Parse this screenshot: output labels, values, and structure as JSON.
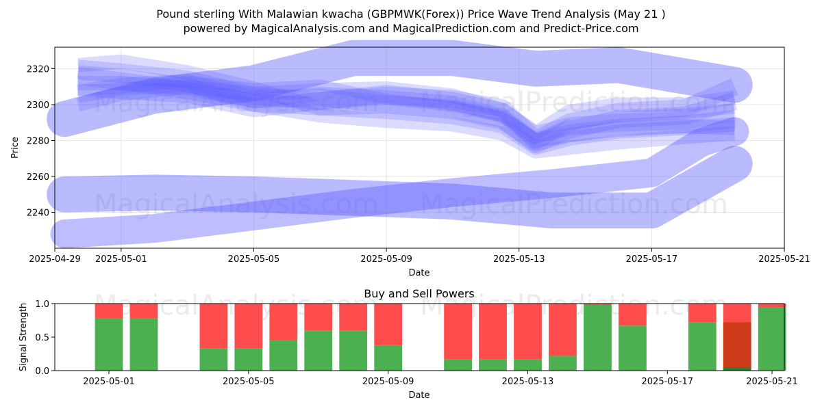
{
  "titles": {
    "line1": "Pound sterling With Malawian kwacha (GBPMWK(Forex)) Price Wave Trend Analysis (May 21 )",
    "line2": "powered by MagicalAnalysis.com and MagicalPrediction.com and Predict-Price.com"
  },
  "watermarks": {
    "left": "MagicalAnalysis.com",
    "right": "MagicalPrediction.com"
  },
  "chart_data": [
    {
      "type": "area",
      "title": "",
      "xlabel": "Date",
      "ylabel": "Price",
      "x_start": "2025-04-29",
      "x_end": "2025-05-21",
      "xlim": [
        0,
        22
      ],
      "ylim": [
        2220,
        2332
      ],
      "x_ticks": [
        {
          "day": 0,
          "label": "2025-04-29"
        },
        {
          "day": 2,
          "label": "2025-05-01"
        },
        {
          "day": 6,
          "label": "2025-05-05"
        },
        {
          "day": 10,
          "label": "2025-05-09"
        },
        {
          "day": 14,
          "label": "2025-05-13"
        },
        {
          "day": 18,
          "label": "2025-05-17"
        },
        {
          "day": 22,
          "label": "2025-05-21"
        }
      ],
      "y_ticks": [
        2240,
        2260,
        2280,
        2300,
        2320
      ],
      "grid": true,
      "series": [
        {
          "name": "band-upper-wide",
          "width": 20,
          "opacity": 0.42,
          "x": [
            0.3,
            3,
            6,
            9,
            12,
            14.5,
            17,
            20.5
          ],
          "y": [
            2292,
            2305,
            2312,
            2326,
            2326,
            2320,
            2322,
            2311
          ]
        },
        {
          "name": "band-lower-wide",
          "width": 20,
          "opacity": 0.42,
          "x": [
            0.3,
            3,
            6,
            9,
            12,
            15,
            18,
            20.5
          ],
          "y": [
            2250,
            2251,
            2250,
            2248,
            2246,
            2241,
            2241,
            2267
          ]
        },
        {
          "name": "band-rising",
          "width": 16,
          "opacity": 0.4,
          "x": [
            0.3,
            3,
            6,
            9,
            12,
            15,
            18,
            19.5,
            20.5
          ],
          "y": [
            2228,
            2231,
            2238,
            2245,
            2251,
            2256,
            2262,
            2279,
            2285
          ]
        },
        {
          "name": "wave-1",
          "width": 10,
          "opacity": 0.22,
          "x": [
            0.7,
            2,
            4,
            6,
            8,
            10,
            12,
            13.5,
            14.5,
            15.5,
            17,
            19,
            20.5
          ],
          "y": [
            2320,
            2318,
            2314,
            2305,
            2302,
            2305,
            2303,
            2298,
            2280,
            2290,
            2296,
            2298,
            2310
          ]
        },
        {
          "name": "wave-2",
          "width": 10,
          "opacity": 0.22,
          "x": [
            0.7,
            2,
            4,
            6,
            8,
            10,
            12,
            13.5,
            14.5,
            15.5,
            17,
            19,
            20.5
          ],
          "y": [
            2316,
            2313,
            2308,
            2301,
            2299,
            2300,
            2298,
            2292,
            2278,
            2286,
            2292,
            2294,
            2302
          ]
        },
        {
          "name": "wave-3",
          "width": 10,
          "opacity": 0.22,
          "x": [
            0.7,
            2,
            4,
            6,
            8,
            10,
            12,
            13.5,
            14.5,
            15.5,
            17,
            19,
            20.5
          ],
          "y": [
            2310,
            2308,
            2306,
            2298,
            2302,
            2306,
            2302,
            2296,
            2283,
            2288,
            2290,
            2291,
            2296
          ]
        },
        {
          "name": "wave-4",
          "width": 10,
          "opacity": 0.22,
          "x": [
            0.7,
            2,
            4,
            6,
            8,
            10,
            12,
            13.5,
            14.5,
            15.5,
            17,
            19,
            20.5
          ],
          "y": [
            2306,
            2310,
            2312,
            2303,
            2304,
            2300,
            2297,
            2291,
            2279,
            2284,
            2287,
            2289,
            2292
          ]
        },
        {
          "name": "wave-5",
          "width": 8,
          "opacity": 0.22,
          "x": [
            0.7,
            2,
            4,
            6,
            8,
            10,
            12,
            13.5,
            14.5,
            15.5,
            17,
            19,
            20.5
          ],
          "y": [
            2322,
            2324,
            2318,
            2309,
            2298,
            2296,
            2293,
            2288,
            2276,
            2281,
            2285,
            2287,
            2289
          ]
        },
        {
          "name": "wave-6",
          "width": 8,
          "opacity": 0.22,
          "x": [
            0.7,
            2,
            4,
            6,
            8,
            10,
            12,
            13.5,
            14.5,
            15.5,
            17,
            19,
            20.5
          ],
          "y": [
            2312,
            2312,
            2309,
            2302,
            2306,
            2304,
            2301,
            2294,
            2280,
            2283,
            2287,
            2288,
            2287
          ]
        },
        {
          "name": "wave-7",
          "width": 8,
          "opacity": 0.22,
          "x": [
            0.7,
            2,
            4,
            6,
            8,
            10,
            12,
            13.5,
            14.5,
            15.5,
            17,
            19,
            20.5
          ],
          "y": [
            2300,
            2306,
            2310,
            2306,
            2308,
            2309,
            2305,
            2297,
            2284,
            2296,
            2300,
            2300,
            2304
          ]
        },
        {
          "name": "wave-8",
          "width": 8,
          "opacity": 0.22,
          "x": [
            0.7,
            2,
            4,
            6,
            8,
            10,
            12,
            13.5,
            14.5,
            15.5,
            17,
            19,
            20.5
          ],
          "y": [
            2318,
            2316,
            2311,
            2300,
            2294,
            2291,
            2289,
            2284,
            2274,
            2276,
            2279,
            2282,
            2284
          ]
        },
        {
          "name": "wave-9",
          "width": 6,
          "opacity": 0.22,
          "x": [
            0.7,
            2,
            4,
            6,
            8,
            10,
            12,
            13.5,
            14.5,
            15.5,
            17,
            19,
            20.5
          ],
          "y": [
            2308,
            2309,
            2313,
            2309,
            2311,
            2303,
            2299,
            2293,
            2281,
            2289,
            2293,
            2295,
            2298
          ]
        }
      ]
    },
    {
      "type": "bar",
      "title": "Buy and Sell Powers",
      "xlabel": "Date",
      "ylabel": "Signal Strength",
      "ylim": [
        0,
        1
      ],
      "xlim": [
        0.45,
        21.35
      ],
      "y_ticks": [
        {
          "v": 0,
          "label": "0.0"
        },
        {
          "v": 0.5,
          "label": "0.5"
        },
        {
          "v": 1,
          "label": "1.0"
        }
      ],
      "x_ticks": [
        {
          "day": 2,
          "label": "2025-05-01"
        },
        {
          "day": 6,
          "label": "2025-05-05"
        },
        {
          "day": 10,
          "label": "2025-05-09"
        },
        {
          "day": 14,
          "label": "2025-05-13"
        },
        {
          "day": 18,
          "label": "2025-05-17"
        },
        {
          "day": 22,
          "label": "2025-05-21"
        }
      ],
      "colors": {
        "buy": "#4caf50",
        "sell": "#ff4d4d",
        "buy_dark": "#2e7d32",
        "sell_dark": "#cc3a1a"
      },
      "series": [
        {
          "name": "buy",
          "x": [
            2,
            3,
            5,
            6,
            7,
            8,
            9,
            10,
            12,
            13,
            14,
            15,
            16,
            17,
            19,
            20,
            21
          ],
          "values": [
            0.78,
            0.78,
            0.33,
            0.33,
            0.45,
            0.6,
            0.6,
            0.38,
            0.17,
            0.17,
            0.17,
            0.22,
            0.98,
            0.67,
            0.72,
            0.05,
            0.94
          ]
        },
        {
          "name": "sell",
          "x": [
            2,
            3,
            5,
            6,
            7,
            8,
            9,
            10,
            12,
            13,
            14,
            15,
            16,
            17,
            19,
            20,
            21
          ],
          "values": [
            0.22,
            0.22,
            0.67,
            0.67,
            0.55,
            0.4,
            0.4,
            0.62,
            0.83,
            0.83,
            0.83,
            0.78,
            0.02,
            0.33,
            0.28,
            0.95,
            0.06
          ]
        }
      ],
      "overlay": {
        "x": 20,
        "from": 0.05,
        "to": 0.72
      }
    }
  ]
}
